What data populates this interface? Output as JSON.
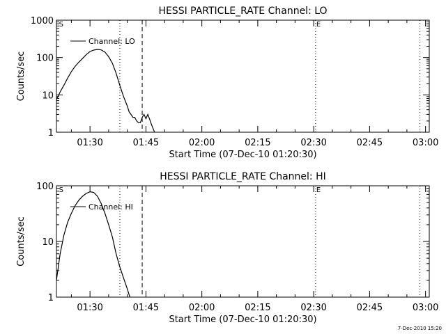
{
  "footer_stamp": "7-Dec-2010 15:20",
  "chart_data": [
    {
      "type": "line",
      "title": "HESSI PARTICLE_RATE Channel: LO",
      "xlabel": "Start Time (07-Dec-10 01:20:30)",
      "ylabel": "Counts/sec",
      "yscale": "log",
      "ylim": [
        1,
        1000
      ],
      "xlim_minutes": [
        81,
        181
      ],
      "x_ticks": [
        {
          "t": 90,
          "label": "01:30"
        },
        {
          "t": 105,
          "label": "01:45"
        },
        {
          "t": 120,
          "label": "02:00"
        },
        {
          "t": 135,
          "label": "02:15"
        },
        {
          "t": 150,
          "label": "02:30"
        },
        {
          "t": 165,
          "label": "02:45"
        },
        {
          "t": 180,
          "label": "03:00"
        }
      ],
      "y_ticks": [
        {
          "v": 1,
          "label": "1"
        },
        {
          "v": 10,
          "label": "10"
        },
        {
          "v": 100,
          "label": "100"
        },
        {
          "v": 1000,
          "label": "1000"
        }
      ],
      "legend": "Channel: LO",
      "legend_position": "upper-left",
      "series": [
        {
          "name": "Channel: LO",
          "x": [
            81,
            82,
            83,
            84,
            85,
            86,
            87,
            88,
            89,
            90,
            91,
            92,
            93,
            94,
            95,
            96,
            97,
            98,
            99,
            100,
            100.5,
            101,
            101.5,
            102,
            102.5,
            103,
            103.5,
            104,
            104.5,
            105,
            105.5,
            106,
            106.5,
            107,
            107.5
          ],
          "values": [
            7.5,
            12,
            18,
            28,
            42,
            58,
            75,
            95,
            120,
            145,
            158,
            165,
            160,
            140,
            105,
            70,
            38,
            18,
            9,
            5,
            3.5,
            3,
            2.5,
            2.5,
            2,
            1.8,
            1.8,
            2.5,
            3,
            2.3,
            3,
            2.2,
            1.6,
            1.2,
            0.9
          ]
        }
      ],
      "markers": [
        {
          "t": 81.5,
          "label": "S",
          "style": "dotted",
          "line": false
        },
        {
          "t": 98,
          "label": "",
          "style": "dotted",
          "line": true
        },
        {
          "t": 104,
          "label": "",
          "style": "dashed",
          "line": true
        },
        {
          "t": 150.5,
          "label": "E",
          "style": "dotted",
          "line": true
        },
        {
          "t": 178.5,
          "label": "",
          "style": "dotted",
          "line": true
        }
      ]
    },
    {
      "type": "line",
      "title": "HESSI PARTICLE_RATE Channel: HI",
      "xlabel": "Start Time (07-Dec-10 01:20:30)",
      "ylabel": "Counts/sec",
      "yscale": "log",
      "ylim": [
        1,
        100
      ],
      "xlim_minutes": [
        81,
        181
      ],
      "x_ticks": [
        {
          "t": 90,
          "label": "01:30"
        },
        {
          "t": 105,
          "label": "01:45"
        },
        {
          "t": 120,
          "label": "02:00"
        },
        {
          "t": 135,
          "label": "02:15"
        },
        {
          "t": 150,
          "label": "02:30"
        },
        {
          "t": 165,
          "label": "02:45"
        },
        {
          "t": 180,
          "label": "03:00"
        }
      ],
      "y_ticks": [
        {
          "v": 1,
          "label": "1"
        },
        {
          "v": 10,
          "label": "10"
        },
        {
          "v": 100,
          "label": "100"
        }
      ],
      "legend": "Channel: HI",
      "legend_position": "upper-left",
      "series": [
        {
          "name": "Channel: HI",
          "x": [
            81,
            82,
            83,
            84,
            85,
            86,
            87,
            88,
            89,
            90,
            91,
            92,
            93,
            94,
            95,
            96,
            97,
            98,
            99,
            100,
            100.5,
            101
          ],
          "values": [
            2,
            6,
            13,
            22,
            32,
            44,
            55,
            65,
            73,
            78,
            76,
            65,
            48,
            32,
            20,
            12,
            6,
            3.5,
            2.2,
            1.4,
            1.1,
            0.9
          ]
        }
      ],
      "markers": [
        {
          "t": 81.5,
          "label": "S",
          "style": "dotted",
          "line": false
        },
        {
          "t": 98,
          "label": "",
          "style": "dotted",
          "line": true
        },
        {
          "t": 104,
          "label": "",
          "style": "dashed",
          "line": true
        },
        {
          "t": 150.5,
          "label": "E",
          "style": "dotted",
          "line": true
        },
        {
          "t": 178.5,
          "label": "",
          "style": "dotted",
          "line": true
        }
      ]
    }
  ]
}
